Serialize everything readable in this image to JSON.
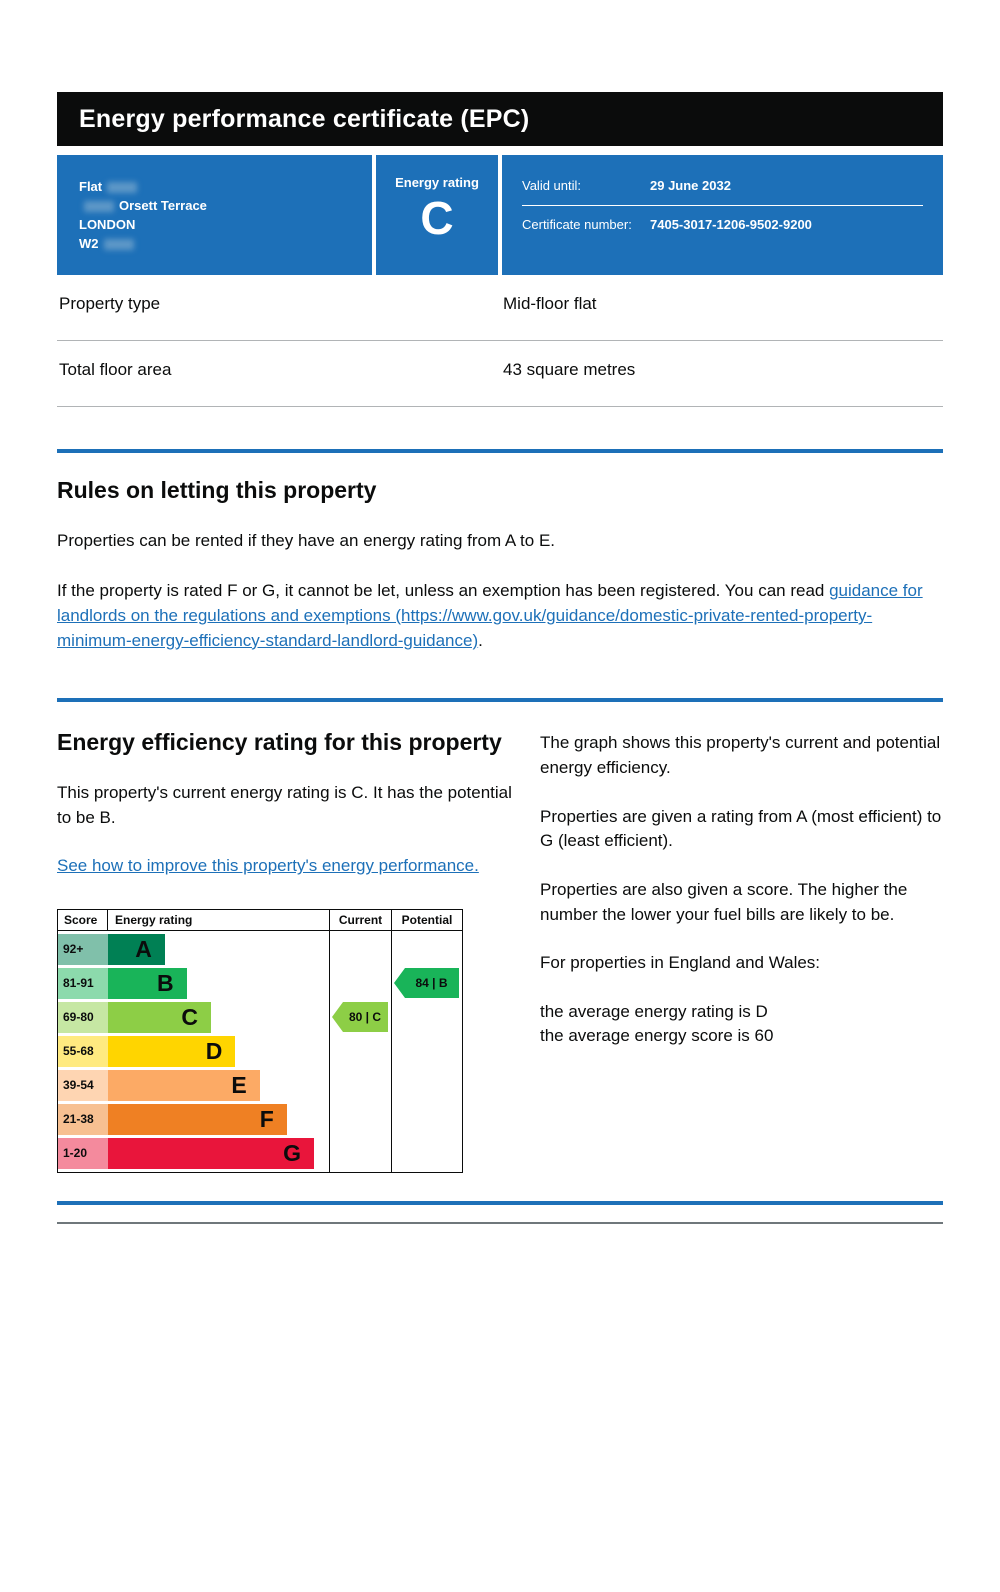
{
  "colors": {
    "brand_blue": "#1d70b8",
    "banner_black": "#0b0c0c",
    "text": "#0b0c0c",
    "link": "#1d70b8",
    "border_gray": "#b1b4b6"
  },
  "header": {
    "title": "Energy performance certificate (EPC)"
  },
  "summary": {
    "address": {
      "lines": [
        "Flat",
        "Orsett Terrace",
        "LONDON",
        "W2"
      ]
    },
    "rating": {
      "label": "Energy rating",
      "value": "C"
    },
    "validity": {
      "valid_until_label": "Valid until:",
      "valid_until_value": "29 June 2032",
      "certificate_label": "Certificate number:",
      "certificate_value": "7405-3017-1206-9502-9200"
    }
  },
  "property_details": {
    "rows": [
      {
        "label": "Property type",
        "value": "Mid-floor flat"
      },
      {
        "label": "Total floor area",
        "value": "43 square metres"
      }
    ]
  },
  "rules": {
    "heading": "Rules on letting this property",
    "para1": "Properties can be rented if they have an energy rating from A to E.",
    "para2_text": "If the property is rated F or G, it cannot be let, unless an exemption has been registered. You can read ",
    "para2_link": "guidance for landlords on the regulations and exemptions (https://www.gov.uk/guidance/domestic-private-rented-property-minimum-energy-efficiency-standard-landlord-guidance)",
    "para2_suffix": "."
  },
  "efficiency": {
    "heading": "Energy efficiency rating for this property",
    "para1": "This property's current energy rating is C. It has the potential to be B.",
    "link": "See how to improve this property's energy performance."
  },
  "explanation": {
    "para1": "The graph shows this property's current and potential energy efficiency.",
    "para2": "Properties are given a rating from A (most efficient) to G (least efficient).",
    "para3": "Properties are also given a score. The higher the number the lower your fuel bills are likely to be.",
    "para4": "For properties in England and Wales:",
    "avg_rating": "the average energy rating is D",
    "avg_score": "the average energy score is 60"
  },
  "chart_data": {
    "type": "bar",
    "title": "Energy efficiency rating bands",
    "columns": [
      "Score",
      "Energy rating",
      "Current",
      "Potential"
    ],
    "bands": [
      {
        "score_range": "92+",
        "letter": "A",
        "color": "#008054",
        "tint": "#80c0aa",
        "width_percent": 21
      },
      {
        "score_range": "81-91",
        "letter": "B",
        "color": "#19b459",
        "tint": "#8cdaac",
        "width_percent": 29
      },
      {
        "score_range": "69-80",
        "letter": "C",
        "color": "#8dce46",
        "tint": "#c6e7a3",
        "width_percent": 38
      },
      {
        "score_range": "55-68",
        "letter": "D",
        "color": "#ffd500",
        "tint": "#ffea80",
        "width_percent": 47
      },
      {
        "score_range": "39-54",
        "letter": "E",
        "color": "#fcaa65",
        "tint": "#fed5b2",
        "width_percent": 56
      },
      {
        "score_range": "21-38",
        "letter": "F",
        "color": "#ef8023",
        "tint": "#f7c091",
        "width_percent": 66
      },
      {
        "score_range": "1-20",
        "letter": "G",
        "color": "#e9153b",
        "tint": "#f48a9d",
        "width_percent": 76
      }
    ],
    "current": {
      "score": 80,
      "letter": "C",
      "label": "80 |  C",
      "color": "#8dce46",
      "band_index": 2
    },
    "potential": {
      "score": 84,
      "letter": "B",
      "label": "84 |  B",
      "color": "#19b459",
      "band_index": 1
    }
  }
}
